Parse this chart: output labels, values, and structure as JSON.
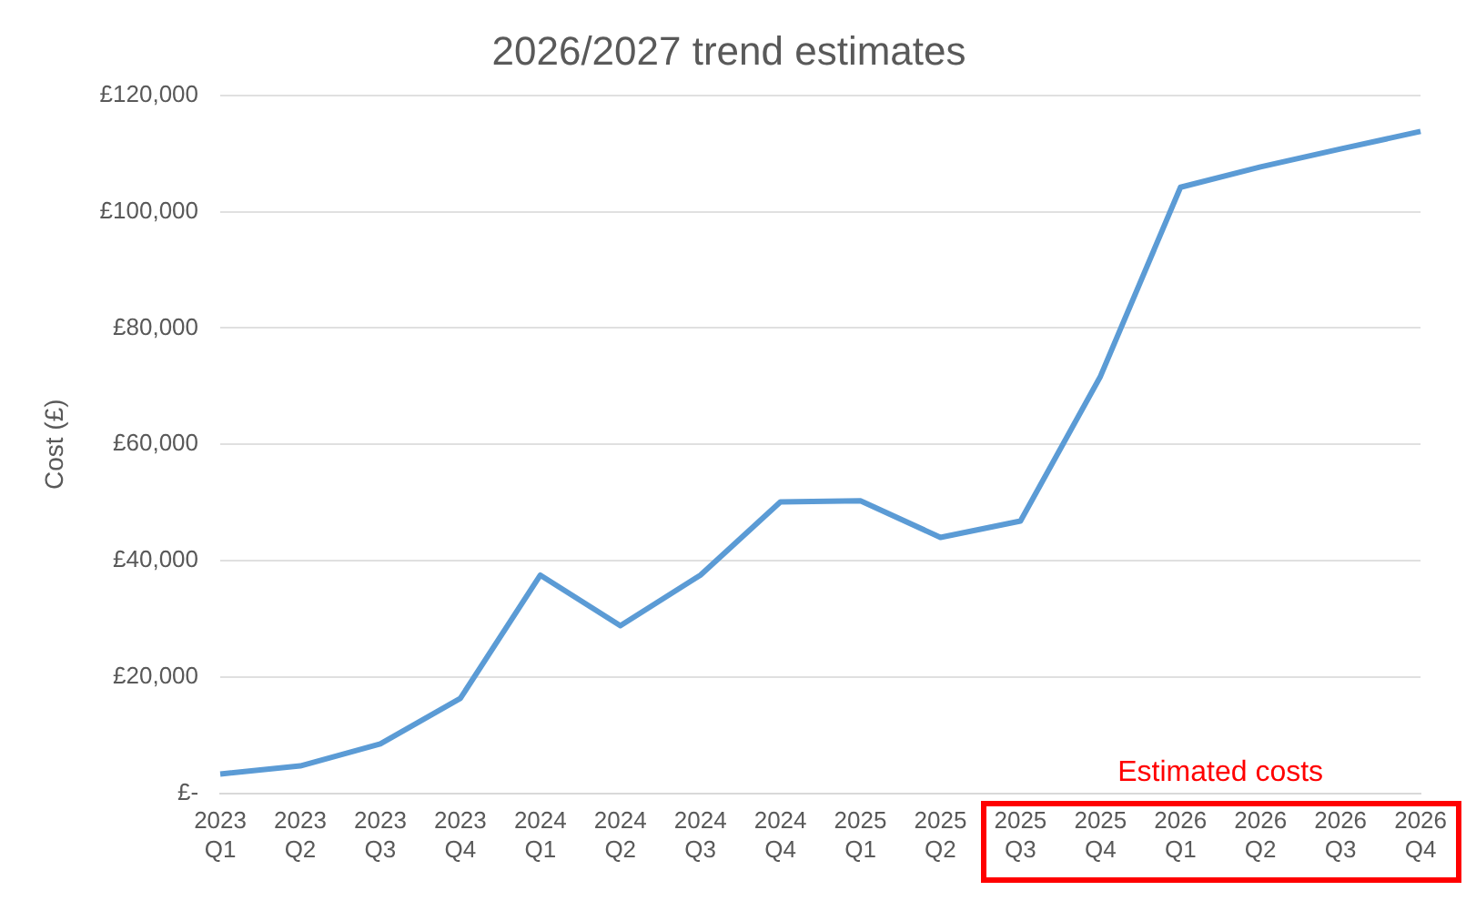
{
  "chart_data": {
    "type": "line",
    "title": "2026/2027 trend estimates",
    "ylabel": "Cost (£)",
    "categories": [
      "2023\nQ1",
      "2023\nQ2",
      "2023\nQ3",
      "2023\nQ4",
      "2024\nQ1",
      "2024\nQ2",
      "2024\nQ3",
      "2024\nQ4",
      "2025\nQ1",
      "2025\nQ2",
      "2025\nQ3",
      "2025\nQ4",
      "2026\nQ1",
      "2026\nQ2",
      "2026\nQ3",
      "2026\nQ4"
    ],
    "series": [
      {
        "color": "#5b9bd5",
        "values": [
          3300,
          4700,
          8500,
          16300,
          37500,
          28800,
          37500,
          50100,
          50300,
          44000,
          46800,
          71700,
          104200,
          107700,
          110800,
          113800
        ]
      }
    ],
    "ylim": [
      0,
      120000
    ],
    "yticks": [
      {
        "value": 0,
        "label": "£-"
      },
      {
        "value": 20000,
        "label": "£20,000"
      },
      {
        "value": 40000,
        "label": "£40,000"
      },
      {
        "value": 60000,
        "label": "£60,000"
      },
      {
        "value": 80000,
        "label": "£80,000"
      },
      {
        "value": 100000,
        "label": "£100,000"
      },
      {
        "value": 120000,
        "label": "£120,000"
      }
    ],
    "annotations": [
      "Estimated costs"
    ],
    "grid": "y",
    "legend": false,
    "marker": "none",
    "line_style": "solid"
  }
}
